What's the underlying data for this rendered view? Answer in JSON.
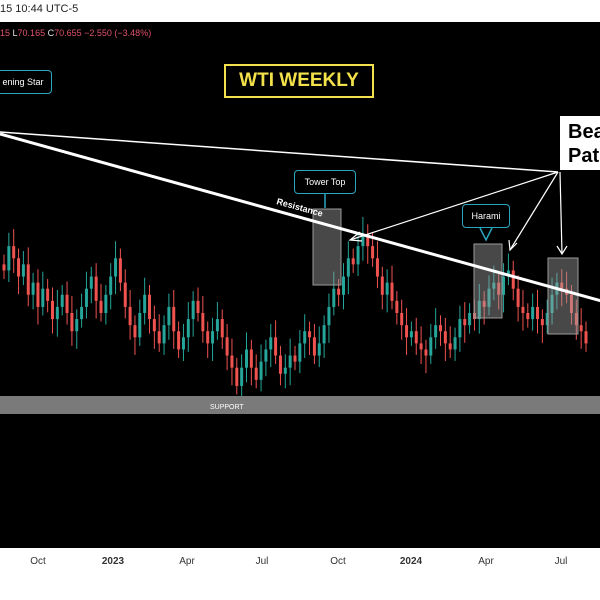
{
  "header": {
    "timestamp": "15 10:44 UTC-5"
  },
  "ohlc": {
    "open_fragment": "15",
    "low_label": "L",
    "low_value": "70.165",
    "close_label": "C",
    "close_value": "70.655",
    "change": "−2.550 (−3.48%)"
  },
  "annotations": {
    "title": "WTI WEEKLY",
    "evening_star": "ening Star",
    "tower_top": "Tower Top",
    "harami": "Harami",
    "resistance": "Resistance",
    "support": "SUPPORT",
    "bearish_line1": "Bea",
    "bearish_line2": "Pat"
  },
  "colors": {
    "bullish": "#26a69a",
    "bearish": "#ef5350",
    "callout_border": "#2aa5c0",
    "title": "#f2e14a"
  },
  "chart_data": {
    "type": "candlestick",
    "title": "WTI WEEKLY",
    "x_ticks": [
      "Oct",
      "2023",
      "Apr",
      "Jul",
      "Oct",
      "2024",
      "Apr",
      "Jul"
    ],
    "support_label": "SUPPORT",
    "resistance_label": "Resistance",
    "pattern_labels": [
      "ening Star",
      "Tower Top",
      "Harami"
    ],
    "closes": [
      86,
      90,
      88,
      85,
      87,
      82,
      84,
      80,
      83,
      81,
      78,
      80,
      82,
      79,
      76,
      78,
      80,
      83,
      85,
      81,
      79,
      82,
      85,
      88,
      84,
      80,
      77,
      75,
      79,
      82,
      78,
      76,
      74,
      77,
      80,
      76,
      73,
      75,
      78,
      81,
      79,
      76,
      74,
      76,
      78,
      75,
      72,
      70,
      67,
      70,
      73,
      70,
      68,
      71,
      73,
      75,
      72,
      69,
      70,
      72,
      71,
      74,
      76,
      75,
      72,
      74,
      77,
      80,
      83,
      82,
      85,
      88,
      87,
      90,
      92,
      90,
      88,
      85,
      82,
      84,
      81,
      79,
      77,
      75,
      76,
      74,
      73,
      72,
      75,
      77,
      76,
      74,
      73,
      75,
      78,
      77,
      79,
      78,
      81,
      80,
      83,
      84,
      82,
      85,
      86,
      83,
      80,
      79,
      78,
      80,
      78,
      77,
      79,
      82,
      84,
      83,
      82,
      79,
      77,
      76,
      74
    ]
  }
}
